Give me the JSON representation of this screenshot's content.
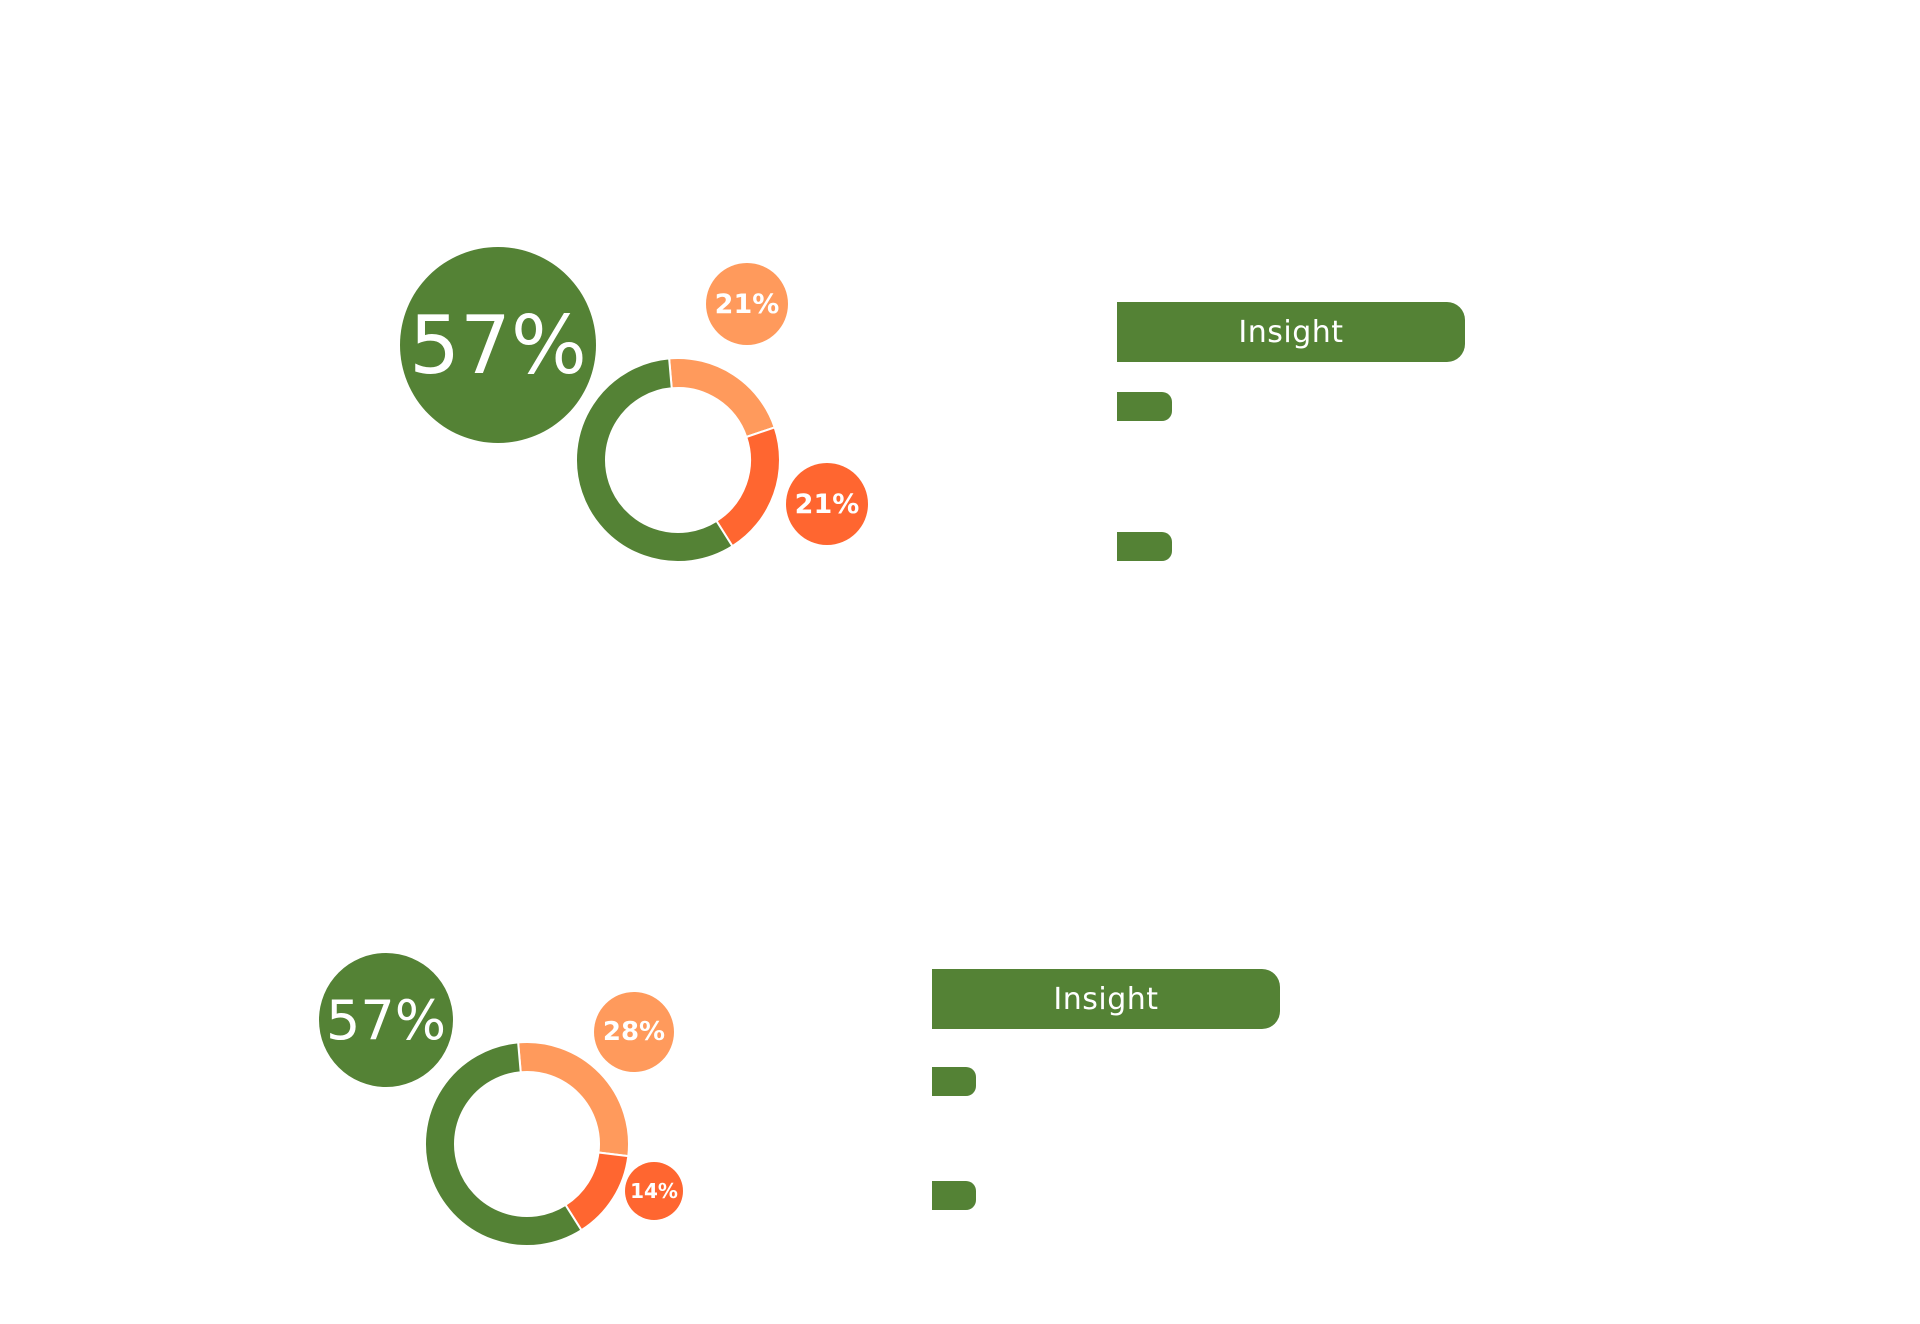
{
  "colors": {
    "green": "#548235",
    "light_orange": "#FF9A5C",
    "dark_orange": "#FF6630"
  },
  "chart_data": [
    {
      "type": "pie",
      "variant": "donut",
      "values": [
        57,
        21,
        21
      ],
      "colors": [
        "#548235",
        "#FF9A5C",
        "#FF6630"
      ],
      "labels": [
        "57%",
        "21%",
        "21%"
      ]
    },
    {
      "type": "pie",
      "variant": "donut",
      "values": [
        57,
        28,
        14
      ],
      "colors": [
        "#548235",
        "#FF9A5C",
        "#FF6630"
      ],
      "labels": [
        "57%",
        "28%",
        "14%"
      ]
    }
  ],
  "insight_panels": [
    {
      "header": "Insight",
      "bullets": 2
    },
    {
      "header": "Insight",
      "bullets": 2
    }
  ]
}
